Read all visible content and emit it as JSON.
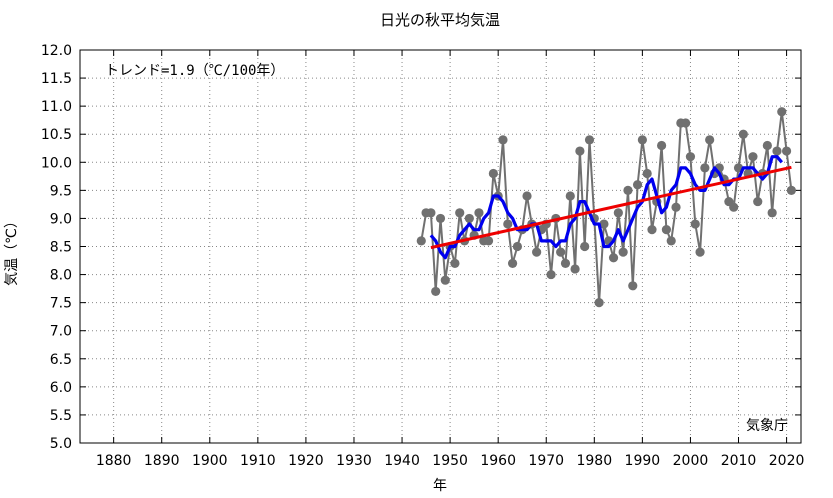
{
  "chart_data": {
    "type": "line",
    "title": "日光の秋平均気温",
    "xlabel": "年",
    "ylabel": "気温（℃）",
    "xlim": [
      1873,
      2023
    ],
    "ylim": [
      5.0,
      12.0
    ],
    "xticks": [
      1880,
      1890,
      1900,
      1910,
      1920,
      1930,
      1940,
      1950,
      1960,
      1970,
      1980,
      1990,
      2000,
      2010,
      2020
    ],
    "yticks": [
      5.0,
      5.5,
      6.0,
      6.5,
      7.0,
      7.5,
      8.0,
      8.5,
      9.0,
      9.5,
      10.0,
      10.5,
      11.0,
      11.5,
      12.0
    ],
    "grid": true,
    "annotation": "トレンド=1.9（℃/100年）",
    "source": "気象庁",
    "series": [
      {
        "kind": "annual",
        "color": "#707070",
        "x": [
          1944,
          1945,
          1946,
          1947,
          1948,
          1949,
          1950,
          1951,
          1952,
          1953,
          1954,
          1955,
          1956,
          1957,
          1958,
          1959,
          1960,
          1961,
          1962,
          1963,
          1964,
          1965,
          1966,
          1967,
          1968,
          1969,
          1970,
          1971,
          1972,
          1973,
          1974,
          1975,
          1976,
          1977,
          1978,
          1979,
          1980,
          1981,
          1982,
          1983,
          1984,
          1985,
          1986,
          1987,
          1988,
          1989,
          1990,
          1991,
          1992,
          1993,
          1994,
          1995,
          1996,
          1997,
          1998,
          1999,
          2000,
          2001,
          2002,
          2003,
          2004,
          2005,
          2006,
          2007,
          2008,
          2009,
          2010,
          2011,
          2012,
          2013,
          2014,
          2015,
          2016,
          2017,
          2018,
          2019,
          2020,
          2021
        ],
        "y": [
          8.6,
          9.1,
          9.1,
          7.7,
          9.0,
          7.9,
          8.5,
          8.2,
          9.1,
          8.6,
          9.0,
          8.7,
          9.1,
          8.6,
          8.6,
          9.8,
          9.4,
          10.4,
          8.9,
          8.2,
          8.5,
          8.8,
          9.4,
          8.9,
          8.4,
          8.8,
          8.9,
          8.0,
          9.0,
          8.4,
          8.2,
          9.4,
          8.1,
          10.2,
          8.5,
          10.4,
          9.0,
          7.5,
          8.9,
          8.6,
          8.3,
          9.1,
          8.4,
          9.5,
          7.8,
          9.6,
          10.4,
          9.8,
          8.8,
          9.3,
          10.3,
          8.8,
          8.6,
          9.2,
          10.7,
          10.7,
          10.1,
          8.9,
          8.4,
          9.9,
          10.4,
          9.8,
          9.9,
          9.7,
          9.3,
          9.2,
          9.9,
          10.5,
          9.8,
          10.1,
          9.3,
          9.8,
          10.3,
          9.1,
          10.2,
          10.9,
          10.2,
          9.5
        ]
      },
      {
        "kind": "5-year running mean",
        "color": "#0000ee",
        "x": [
          1946,
          1947,
          1948,
          1949,
          1950,
          1951,
          1952,
          1953,
          1954,
          1955,
          1956,
          1957,
          1958,
          1959,
          1960,
          1961,
          1962,
          1963,
          1964,
          1965,
          1966,
          1967,
          1968,
          1969,
          1970,
          1971,
          1972,
          1973,
          1974,
          1975,
          1976,
          1977,
          1978,
          1979,
          1980,
          1981,
          1982,
          1983,
          1984,
          1985,
          1986,
          1987,
          1988,
          1989,
          1990,
          1991,
          1992,
          1993,
          1994,
          1995,
          1996,
          1997,
          1998,
          1999,
          2000,
          2001,
          2002,
          2003,
          2004,
          2005,
          2006,
          2007,
          2008,
          2009,
          2010,
          2011,
          2012,
          2013,
          2014,
          2015,
          2016,
          2017,
          2018,
          2019
        ],
        "y": [
          8.7,
          8.6,
          8.4,
          8.3,
          8.5,
          8.5,
          8.7,
          8.8,
          8.9,
          8.8,
          8.8,
          9.0,
          9.1,
          9.4,
          9.4,
          9.3,
          9.1,
          9.0,
          8.8,
          8.8,
          8.8,
          8.9,
          8.9,
          8.6,
          8.6,
          8.6,
          8.5,
          8.6,
          8.6,
          8.9,
          9.0,
          9.3,
          9.3,
          9.1,
          8.9,
          8.9,
          8.5,
          8.5,
          8.6,
          8.8,
          8.6,
          8.8,
          9.0,
          9.2,
          9.3,
          9.6,
          9.7,
          9.4,
          9.1,
          9.2,
          9.5,
          9.6,
          9.9,
          9.9,
          9.8,
          9.6,
          9.5,
          9.5,
          9.7,
          9.9,
          9.8,
          9.6,
          9.6,
          9.7,
          9.7,
          9.9,
          9.9,
          9.9,
          9.8,
          9.7,
          9.8,
          10.1,
          10.1,
          10.0
        ]
      },
      {
        "kind": "trend",
        "color": "#ee0000",
        "x": [
          1946,
          2021
        ],
        "y": [
          8.48,
          9.91
        ]
      }
    ]
  }
}
